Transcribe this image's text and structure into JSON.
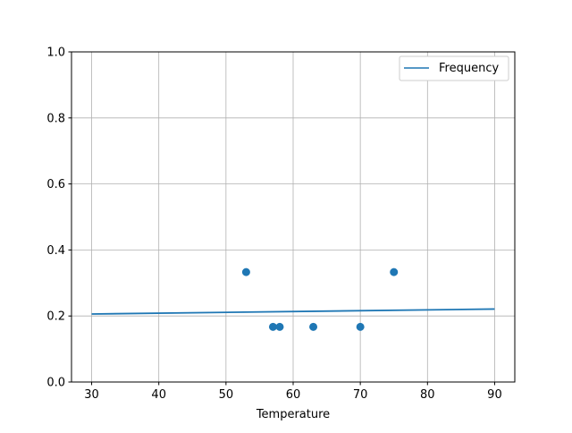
{
  "chart_data": {
    "type": "scatter",
    "title": "",
    "xlabel": "Temperature",
    "ylabel": "",
    "xlim": [
      27,
      93
    ],
    "ylim": [
      0,
      1
    ],
    "xticks": [
      30,
      40,
      50,
      60,
      70,
      80,
      90
    ],
    "yticks": [
      0.0,
      0.2,
      0.4,
      0.6,
      0.8,
      1.0
    ],
    "xtick_labels": [
      "30",
      "40",
      "50",
      "60",
      "70",
      "80",
      "90"
    ],
    "ytick_labels": [
      "0.0",
      "0.2",
      "0.4",
      "0.6",
      "0.8",
      "1.0"
    ],
    "grid": true,
    "legend_placement": "top-right",
    "scatter": {
      "x": [
        53,
        57,
        58,
        63,
        70,
        75
      ],
      "y": [
        0.333,
        0.167,
        0.167,
        0.167,
        0.167,
        0.333
      ],
      "color": "#1f77b4"
    },
    "series": [
      {
        "name": "Frequency",
        "type": "line",
        "x": [
          30,
          90
        ],
        "y": [
          0.206,
          0.221
        ],
        "color": "#1f77b4"
      }
    ]
  }
}
